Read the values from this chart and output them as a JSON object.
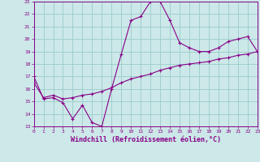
{
  "x": [
    0,
    1,
    2,
    3,
    4,
    5,
    6,
    7,
    8,
    9,
    10,
    11,
    12,
    13,
    14,
    15,
    16,
    17,
    18,
    19,
    20,
    21,
    22,
    23
  ],
  "y_upper": [
    17.0,
    15.2,
    15.3,
    14.9,
    13.6,
    14.7,
    13.3,
    13.0,
    16.0,
    18.8,
    21.5,
    21.8,
    23.0,
    23.0,
    21.5,
    19.7,
    19.3,
    19.0,
    19.0,
    19.3,
    19.8,
    20.0,
    20.2,
    19.0
  ],
  "y_lower": [
    16.5,
    15.3,
    15.5,
    15.2,
    15.3,
    15.5,
    15.6,
    15.8,
    16.1,
    16.5,
    16.8,
    17.0,
    17.2,
    17.5,
    17.7,
    17.9,
    18.0,
    18.1,
    18.2,
    18.4,
    18.5,
    18.7,
    18.8,
    19.0
  ],
  "line_color": "#880088",
  "bg_color": "#cce8e8",
  "grid_color": "#99cccc",
  "xlabel": "Windchill (Refroidissement éolien,°C)",
  "xlim": [
    0,
    23
  ],
  "ylim": [
    13,
    23
  ],
  "xticks": [
    0,
    1,
    2,
    3,
    4,
    5,
    6,
    7,
    8,
    9,
    10,
    11,
    12,
    13,
    14,
    15,
    16,
    17,
    18,
    19,
    20,
    21,
    22,
    23
  ],
  "yticks": [
    13,
    14,
    15,
    16,
    17,
    18,
    19,
    20,
    21,
    22,
    23
  ],
  "tick_fontsize": 4.5,
  "xlabel_fontsize": 6.0,
  "marker": "+"
}
